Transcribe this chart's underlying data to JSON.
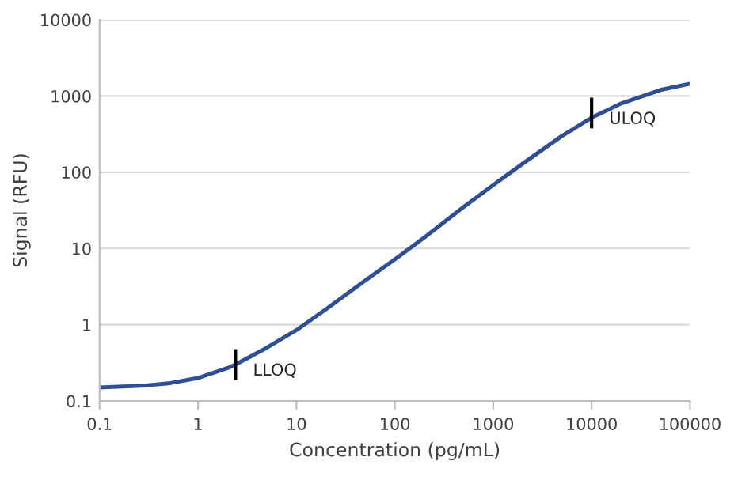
{
  "chart_data": {
    "type": "line",
    "xlabel": "Concentration (pg/mL)",
    "ylabel": "Signal (RFU)",
    "log": "xy",
    "grid": "y",
    "legend": false,
    "marker": "none",
    "line_style": "solid",
    "xlim": [
      0.1,
      100000
    ],
    "ylim": [
      0.1,
      10000
    ],
    "xticks": [
      0.1,
      1,
      10,
      100,
      1000,
      10000,
      100000
    ],
    "yticks": [
      0.1,
      1,
      10,
      100,
      1000,
      10000
    ],
    "series": [
      {
        "color": "#2e4f96",
        "x": [
          0.1,
          0.3,
          0.5,
          1,
          2,
          2.4,
          5,
          10,
          20,
          50,
          100,
          200,
          500,
          1000,
          2000,
          5000,
          10000,
          20000,
          50000,
          100000
        ],
        "values": [
          0.15,
          0.16,
          0.17,
          0.2,
          0.27,
          0.3,
          0.5,
          0.85,
          1.6,
          3.8,
          7.2,
          14,
          35,
          68,
          130,
          300,
          520,
          800,
          1200,
          1450
        ]
      }
    ],
    "annotations": [
      {
        "text": "LLOQ",
        "x": 2.4,
        "y": 0.3
      },
      {
        "text": "ULOQ",
        "x": 10000,
        "y": 600
      }
    ]
  }
}
